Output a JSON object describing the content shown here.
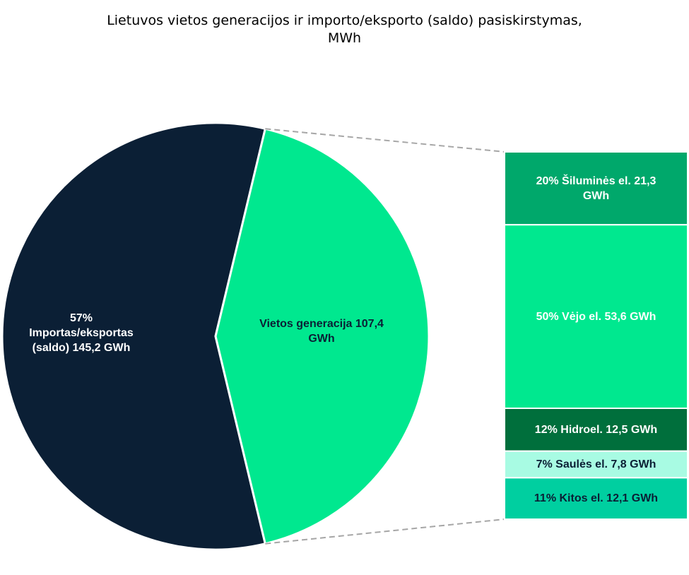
{
  "chart_data": {
    "type": "pie",
    "title_line1": "Lietuvos vietos generacijos ir importo/eksporto (saldo) pasiskirstymas,",
    "title_line2": "MWh",
    "colors": {
      "import": "#0b1f35",
      "local": "#00e88f",
      "thermal": "#00a86b",
      "wind": "#00e88f",
      "hydro": "#006f3c",
      "solar": "#a8fbe3",
      "other": "#00cfa0",
      "connector": "#a6a6a6"
    },
    "slices": [
      {
        "key": "import",
        "percent": 57,
        "value_gwh": 145.2,
        "label_line1": "57%",
        "label_line2": "Importas/eksportas",
        "label_line3": "(saldo)  145,2 GWh"
      },
      {
        "key": "local",
        "value_gwh": 107.4,
        "label_line1": "Vietos generacija   107,4",
        "label_line2": "GWh"
      }
    ],
    "breakdown": [
      {
        "key": "thermal",
        "percent": 20,
        "value_gwh": 21.3,
        "label_line1": "20% Šiluminės el.  21,3",
        "label_line2": "GWh"
      },
      {
        "key": "wind",
        "percent": 50,
        "value_gwh": 53.6,
        "label": "50% Vėjo el.  53,6 GWh"
      },
      {
        "key": "hydro",
        "percent": 12,
        "value_gwh": 12.5,
        "label": "12% Hidroel.  12,5 GWh"
      },
      {
        "key": "solar",
        "percent": 7,
        "value_gwh": 7.8,
        "label": "7% Saulės el.  7,8 GWh"
      },
      {
        "key": "other",
        "percent": 11,
        "value_gwh": 12.1,
        "label": "11% Kitos el.  12,1 GWh"
      }
    ]
  }
}
